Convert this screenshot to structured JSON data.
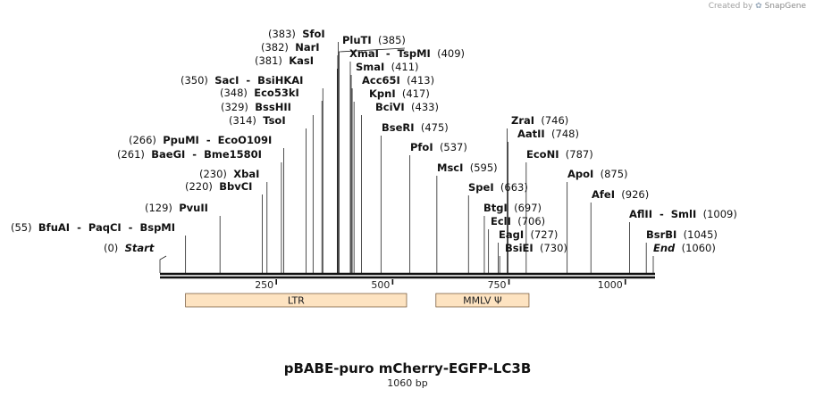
{
  "credit": {
    "prefix": "Created by",
    "brand": "SnapGene"
  },
  "title": "pBABE-puro mCherry-EGFP-LC3B",
  "length_label": "1060 bp",
  "sequence_length": 1060,
  "ticks": [
    {
      "pos": 250,
      "label": "250"
    },
    {
      "pos": 500,
      "label": "500"
    },
    {
      "pos": 750,
      "label": "750"
    },
    {
      "pos": 1000,
      "label": "1000"
    }
  ],
  "features": [
    {
      "name": "LTR",
      "start": 55,
      "end": 530,
      "color": "#fde3c1"
    },
    {
      "name": "MMLV Ψ",
      "start": 593,
      "end": 793,
      "color": "#fde3c1"
    }
  ],
  "sites": [
    {
      "pos": 0,
      "pos_label": "(0)",
      "name": "Start",
      "italic": true
    },
    {
      "pos": 55,
      "pos_label": "(55)",
      "name": "BfuAI  -  PaqCI  -  BspMI"
    },
    {
      "pos": 129,
      "pos_label": "(129)",
      "name": "PvuII"
    },
    {
      "pos": 220,
      "pos_label": "(220)",
      "name": "BbvCI"
    },
    {
      "pos": 230,
      "pos_label": "(230)",
      "name": "XbaI"
    },
    {
      "pos": 261,
      "pos_label": "(261)",
      "name": "BaeGI  -  Bme1580I"
    },
    {
      "pos": 266,
      "pos_label": "(266)",
      "name": "PpuMI  -  EcoO109I"
    },
    {
      "pos": 314,
      "pos_label": "(314)",
      "name": "TsoI"
    },
    {
      "pos": 329,
      "pos_label": "(329)",
      "name": "BssHII"
    },
    {
      "pos": 348,
      "pos_label": "(348)",
      "name": "Eco53kI"
    },
    {
      "pos": 350,
      "pos_label": "(350)",
      "name": "SacI  -  BsiHKAI"
    },
    {
      "pos": 381,
      "pos_label": "(381)",
      "name": "KasI"
    },
    {
      "pos": 382,
      "pos_label": "(382)",
      "name": "NarI"
    },
    {
      "pos": 383,
      "pos_label": "(383)",
      "name": "SfoI"
    },
    {
      "pos": 385,
      "pos_label": "(385)",
      "name": "PluTI"
    },
    {
      "pos": 409,
      "pos_label": "(409)",
      "name": "XmaI  -  TspMI"
    },
    {
      "pos": 411,
      "pos_label": "(411)",
      "name": "SmaI"
    },
    {
      "pos": 413,
      "pos_label": "(413)",
      "name": "Acc65I"
    },
    {
      "pos": 417,
      "pos_label": "(417)",
      "name": "KpnI"
    },
    {
      "pos": 433,
      "pos_label": "(433)",
      "name": "BciVI"
    },
    {
      "pos": 475,
      "pos_label": "(475)",
      "name": "BseRI"
    },
    {
      "pos": 537,
      "pos_label": "(537)",
      "name": "PfoI"
    },
    {
      "pos": 595,
      "pos_label": "(595)",
      "name": "MscI"
    },
    {
      "pos": 663,
      "pos_label": "(663)",
      "name": "SpeI"
    },
    {
      "pos": 697,
      "pos_label": "(697)",
      "name": "BtgI"
    },
    {
      "pos": 706,
      "pos_label": "(706)",
      "name": "EclI"
    },
    {
      "pos": 727,
      "pos_label": "(727)",
      "name": "EagI"
    },
    {
      "pos": 730,
      "pos_label": "(730)",
      "name": "BsiEI"
    },
    {
      "pos": 746,
      "pos_label": "(746)",
      "name": "ZraI"
    },
    {
      "pos": 748,
      "pos_label": "(748)",
      "name": "AatII"
    },
    {
      "pos": 787,
      "pos_label": "(787)",
      "name": "EcoNI"
    },
    {
      "pos": 875,
      "pos_label": "(875)",
      "name": "ApoI"
    },
    {
      "pos": 926,
      "pos_label": "(926)",
      "name": "AfeI"
    },
    {
      "pos": 1009,
      "pos_label": "(1009)",
      "name": "AflII  -  SmlI"
    },
    {
      "pos": 1045,
      "pos_label": "(1045)",
      "name": "BsrBI"
    },
    {
      "pos": 1060,
      "pos_label": "(1060)",
      "name": "End",
      "italic": true
    }
  ]
}
